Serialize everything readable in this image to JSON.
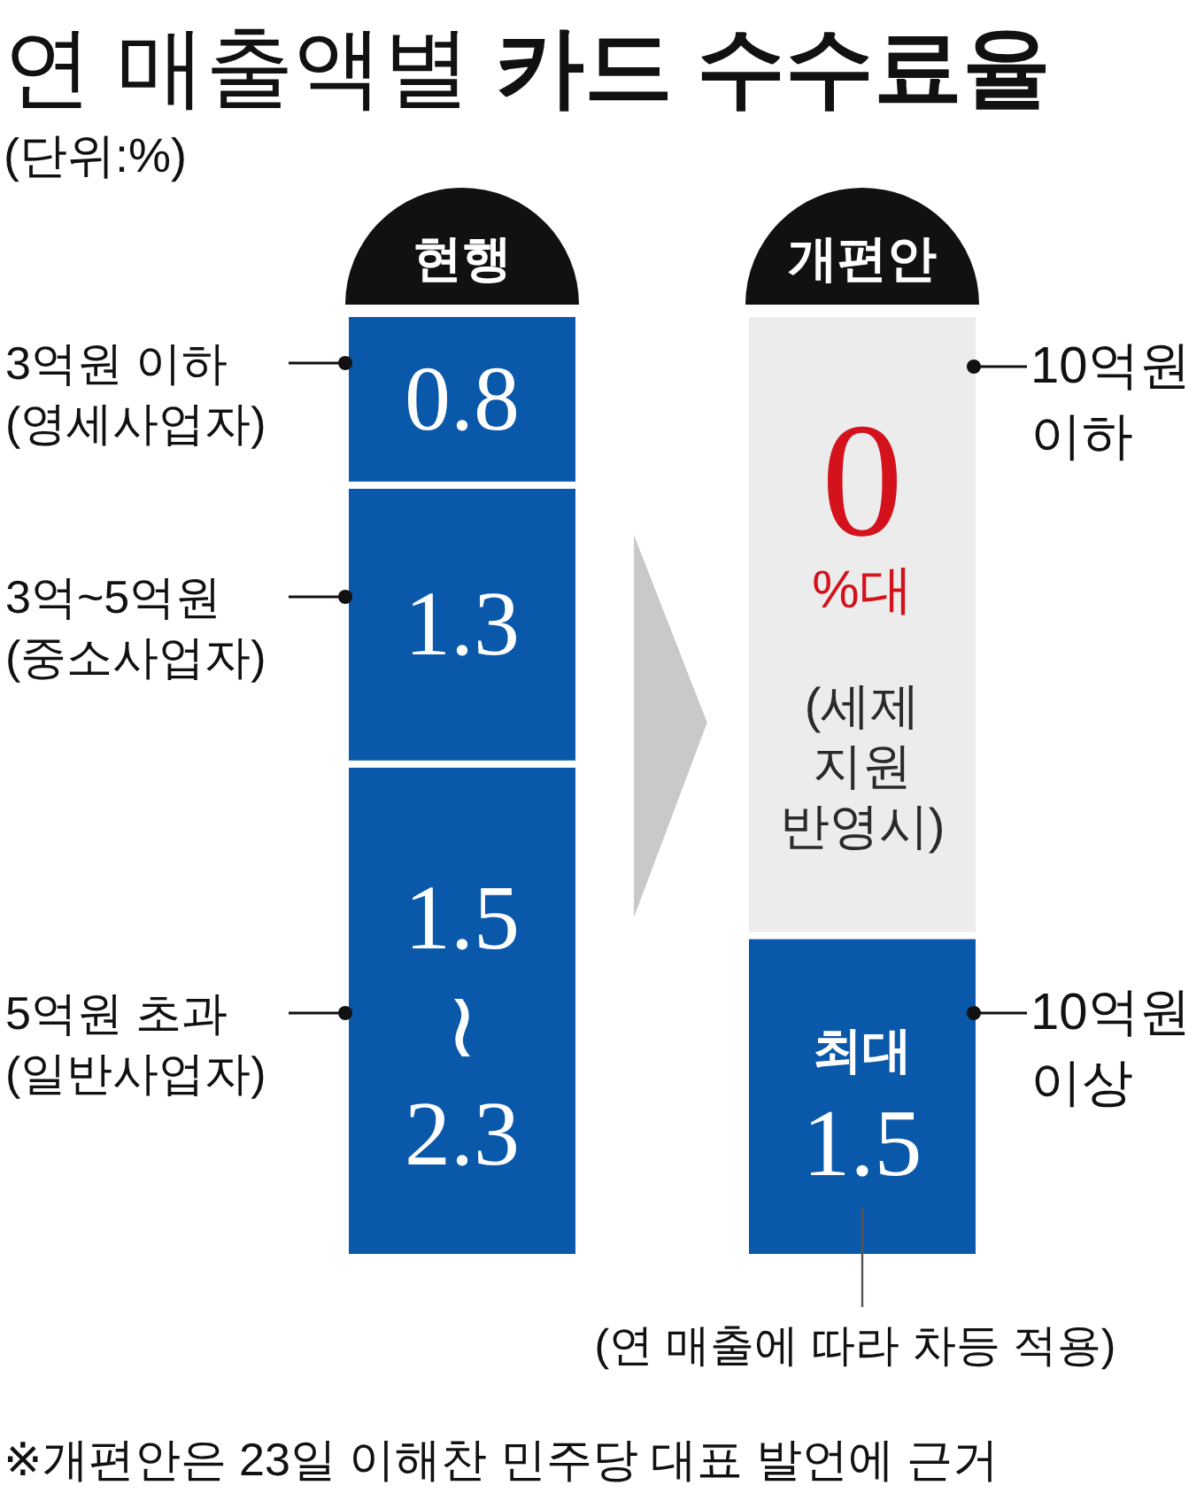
{
  "chart_data": {
    "type": "bar",
    "title": "연 매출액별 카드 수수료율",
    "subtitle": "(단위:%)",
    "categories": [
      "현행",
      "개편안"
    ],
    "stacked": true,
    "series": [
      {
        "color": "#0a58aa",
        "values": [
          2.3,
          1.5
        ],
        "value_labels": [
          "1.5\n≀\n2.3",
          "최대\n1.5"
        ]
      },
      {
        "color": "#0a58aa",
        "values": [
          1.3,
          null
        ],
        "value_labels": [
          "1.3",
          null
        ]
      },
      {
        "color": "#0a58aa",
        "values": [
          0.8,
          null
        ],
        "value_labels": [
          "0.8",
          null
        ]
      }
    ],
    "annotations": [
      "3억원 이하\n(영세사업자)",
      "3억~5억원\n(중소사업자)",
      "5억원 초과\n(일반사업자)",
      "10억원\n이하",
      "0\n%대\n(세제\n지원\n반영시)",
      "10억원\n이상",
      "(연 매출에 따라 차등 적용)",
      "※개편안은 23일 이해찬 민주당 대표 발언에 근거"
    ]
  }
}
